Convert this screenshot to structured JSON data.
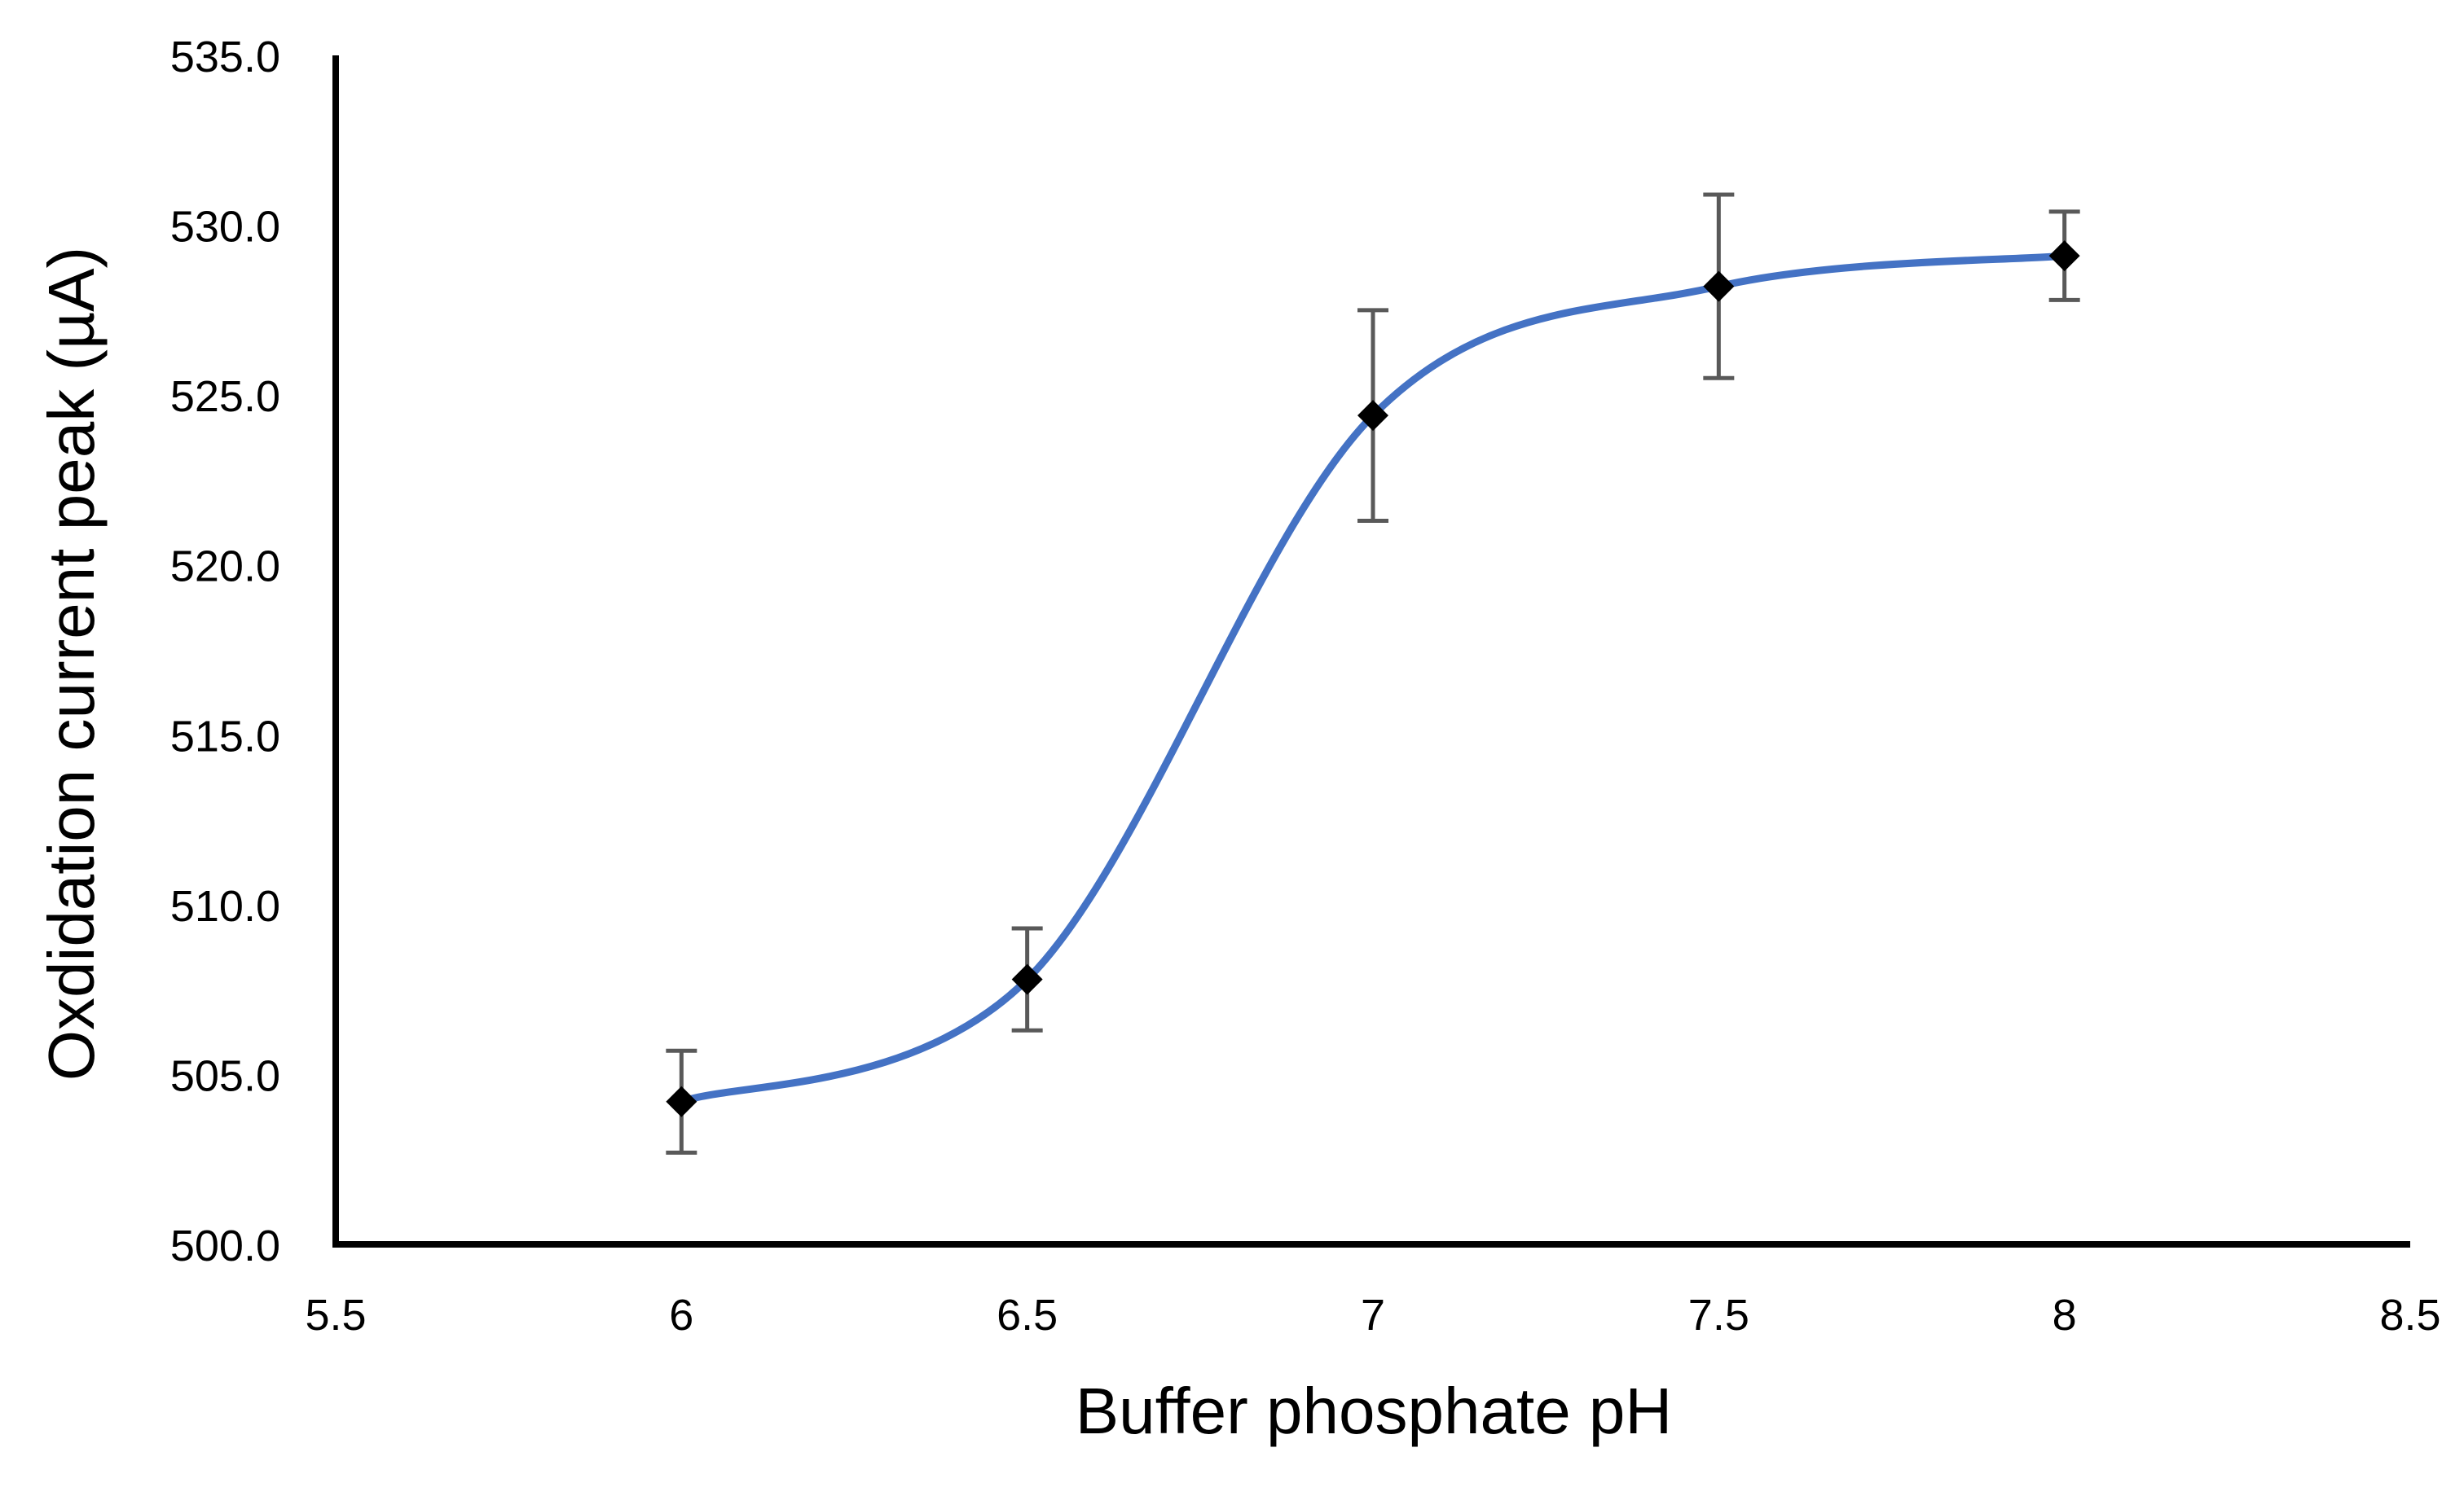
{
  "chart_data": {
    "type": "scatter",
    "xlabel": "Buffer phosphate pH",
    "ylabel": "Oxdidation current peak (µA)",
    "xlim": [
      5.5,
      8.5
    ],
    "ylim": [
      500.0,
      535.0
    ],
    "x_ticks": [
      "5.5",
      "6",
      "6.5",
      "7",
      "7.5",
      "8",
      "8.5"
    ],
    "y_ticks": [
      "500.0",
      "505.0",
      "510.0",
      "515.0",
      "520.0",
      "525.0",
      "530.0",
      "535.0"
    ],
    "grid": false,
    "smoothed_line": true,
    "series": [
      {
        "x": [
          6,
          6.5,
          7,
          7.5,
          8
        ],
        "y": [
          504.2,
          507.8,
          524.4,
          528.2,
          529.1
        ],
        "error": [
          1.5,
          1.5,
          3.1,
          2.7,
          1.3
        ]
      }
    ],
    "colors": {
      "line": "#4472c4",
      "marker": "#000000",
      "error_bar": "#595959",
      "axis": "#000000"
    }
  }
}
